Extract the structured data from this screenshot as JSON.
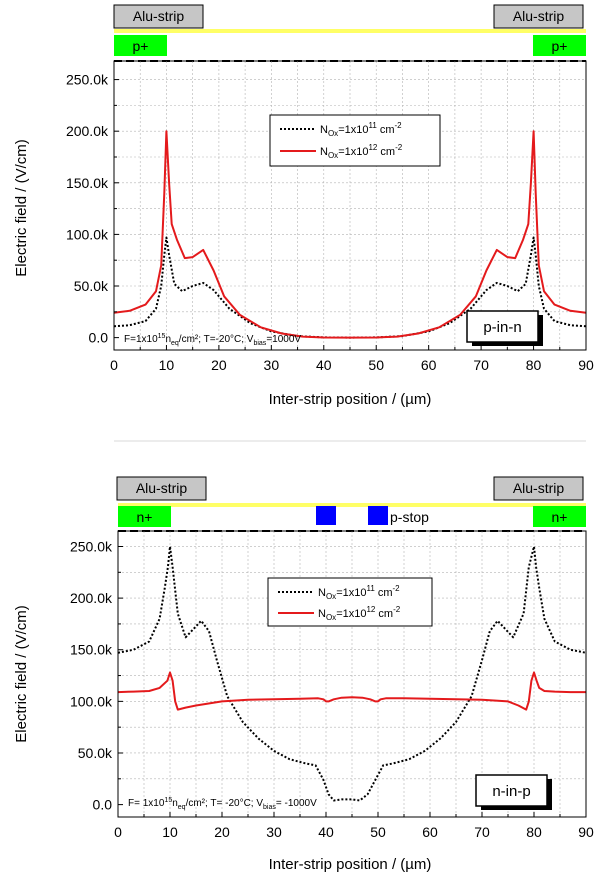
{
  "chart_data": [
    {
      "type": "line",
      "device_label": "p-in-n",
      "condition": "F=1x10¹⁵nₑq/cm²;  T=-20°C;  V_bias=1000V",
      "condition_parts": {
        "pre": "F=1x10",
        "exp": "15",
        "mid": "n",
        "sub": "eq",
        "post": "/cm²;  T=-20°C;  V",
        "sub2": "bias",
        "tail": "=1000V"
      },
      "ylabel": "Electric field / (V/cm)",
      "xlabel": "Inter-strip position / (µm)",
      "xlim": [
        0,
        90
      ],
      "ylim": [
        -12000,
        268000
      ],
      "xticks": [
        "0",
        "10",
        "20",
        "30",
        "40",
        "50",
        "60",
        "70",
        "80",
        "90"
      ],
      "yticks": [
        "0.0",
        "50.0k",
        "100.0k",
        "150.0k",
        "200.0k",
        "250.0k"
      ],
      "strip_labels": {
        "left": "Alu-strip",
        "right": "Alu-strip"
      },
      "implant_labels": {
        "left": "p+",
        "right": "p+"
      },
      "series": [
        {
          "name": "N_Ox=1x10¹¹ cm⁻²",
          "style": "dotted",
          "color": "#000000",
          "x": [
            0,
            3,
            6,
            8,
            9,
            9.6,
            10,
            10.5,
            11.5,
            13,
            15,
            17,
            19,
            22,
            26,
            30,
            35,
            40,
            45,
            50,
            55,
            60,
            64,
            68,
            71,
            73,
            75,
            77,
            78.5,
            79.5,
            80,
            80.4,
            81,
            82,
            84,
            87,
            90
          ],
          "y": [
            11000,
            12000,
            16000,
            28000,
            50000,
            80000,
            97000,
            80000,
            52000,
            45000,
            50000,
            53000,
            46000,
            28000,
            14000,
            6000,
            1500,
            200,
            0,
            200,
            1500,
            6000,
            14000,
            28000,
            46000,
            53000,
            50000,
            45000,
            52000,
            80000,
            97000,
            80000,
            50000,
            28000,
            16000,
            12000,
            11000
          ]
        },
        {
          "name": "N_Ox=1x10¹² cm⁻²",
          "style": "solid",
          "color": "#e41a1c",
          "x": [
            0,
            3,
            6,
            8,
            9,
            9.6,
            10,
            10.5,
            11,
            12,
            13.5,
            15,
            17,
            19,
            21,
            24,
            28,
            32,
            36,
            40,
            45,
            50,
            54,
            58,
            62,
            66,
            69,
            71,
            73,
            75,
            76.5,
            78,
            79,
            79.5,
            80,
            80.4,
            81,
            82,
            84,
            87,
            90
          ],
          "y": [
            24000,
            26000,
            32000,
            45000,
            70000,
            140000,
            200000,
            150000,
            110000,
            95000,
            77000,
            78000,
            85000,
            65000,
            40000,
            22000,
            10000,
            4000,
            1000,
            100,
            0,
            100,
            1000,
            4000,
            10000,
            22000,
            40000,
            65000,
            85000,
            78000,
            77000,
            95000,
            110000,
            150000,
            200000,
            140000,
            70000,
            45000,
            32000,
            26000,
            24000
          ]
        }
      ]
    },
    {
      "type": "line",
      "device_label": "n-in-p",
      "condition": "F= 1x10¹⁵nₑq/cm²;  T= -20°C;  V_bias= -1000V",
      "condition_parts": {
        "pre": "F= 1x10",
        "exp": "15",
        "mid": "n",
        "sub": "eq",
        "post": "/cm²;  T= -20°C;  V",
        "sub2": "bias",
        "tail": "= -1000V"
      },
      "ylabel": "Electric field / (V/cm)",
      "xlabel": "Inter-strip position / (µm)",
      "xlim": [
        0,
        90
      ],
      "ylim": [
        -12000,
        265000
      ],
      "xticks": [
        "0",
        "10",
        "20",
        "30",
        "40",
        "50",
        "60",
        "70",
        "80",
        "90"
      ],
      "yticks": [
        "0.0",
        "50.0k",
        "100.0k",
        "150.0k",
        "200.0k",
        "250.0k"
      ],
      "strip_labels": {
        "left": "Alu-strip",
        "right": "Alu-strip"
      },
      "implant_labels": {
        "left": "n+",
        "right": "n+"
      },
      "pstop_label": "p-stop",
      "series": [
        {
          "name": "N_Ox=1x10¹¹ cm⁻²",
          "style": "dotted",
          "color": "#000000",
          "x": [
            0,
            3,
            6,
            8,
            9,
            9.6,
            10,
            10.5,
            11.5,
            13,
            14.5,
            16,
            17.5,
            19,
            21,
            24,
            27,
            30,
            33,
            36,
            38,
            39.5,
            40.5,
            41.5,
            43,
            45,
            46.5,
            48,
            49.5,
            51,
            53,
            56,
            59,
            62,
            65,
            68,
            70,
            71.5,
            73,
            74.5,
            76,
            78,
            79,
            79.5,
            80,
            80.4,
            81,
            82,
            84,
            87,
            90
          ],
          "y": [
            147000,
            150000,
            158000,
            180000,
            210000,
            230000,
            250000,
            230000,
            185000,
            162000,
            170000,
            178000,
            168000,
            140000,
            105000,
            80000,
            64000,
            52000,
            44000,
            40000,
            38000,
            24000,
            10000,
            4000,
            5000,
            5000,
            4000,
            10000,
            24000,
            38000,
            40000,
            44000,
            52000,
            64000,
            80000,
            105000,
            140000,
            168000,
            178000,
            170000,
            162000,
            185000,
            230000,
            240000,
            250000,
            230000,
            210000,
            180000,
            158000,
            150000,
            147000
          ]
        },
        {
          "name": "N_Ox=1x10¹² cm⁻²",
          "style": "solid",
          "color": "#e41a1c",
          "x": [
            0,
            3,
            6,
            8,
            9.5,
            10,
            10.5,
            11,
            11.5,
            13,
            15,
            20,
            25,
            30,
            35,
            38.5,
            39.5,
            40,
            40.5,
            41.5,
            43,
            45,
            47,
            48.5,
            49.5,
            50,
            50.5,
            51.5,
            55,
            60,
            65,
            70,
            75,
            77,
            78.5,
            79,
            79.5,
            80,
            80.5,
            81,
            82,
            84,
            87,
            90
          ],
          "y": [
            109000,
            109500,
            110000,
            113000,
            120000,
            128000,
            120000,
            100000,
            92000,
            94000,
            96000,
            100000,
            101500,
            102000,
            102500,
            103000,
            102000,
            100000,
            100000,
            102000,
            103500,
            104000,
            103500,
            102000,
            100000,
            100000,
            102000,
            103000,
            103000,
            102500,
            102000,
            101500,
            100000,
            96000,
            92000,
            100000,
            120000,
            128000,
            120000,
            113000,
            110000,
            109500,
            109000,
            109000
          ]
        }
      ]
    }
  ]
}
